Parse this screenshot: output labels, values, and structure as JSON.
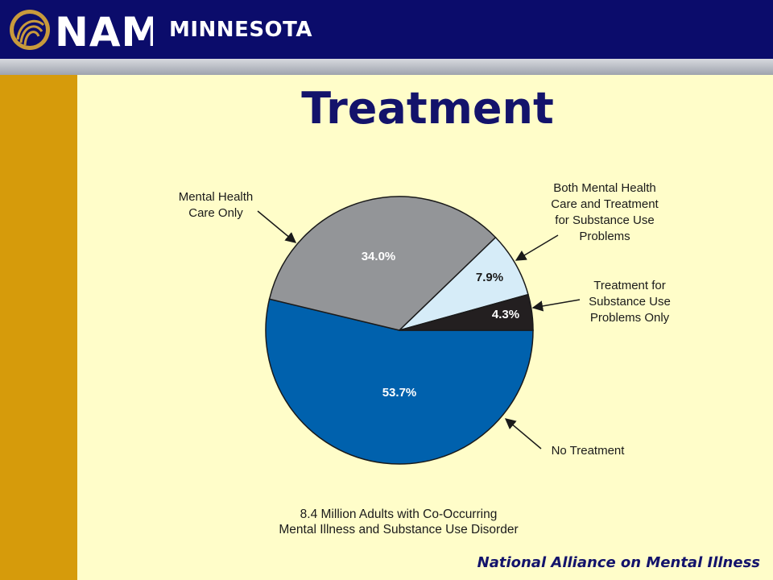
{
  "header": {
    "org_name": "NAMI",
    "region": "MINNESOTA"
  },
  "colors": {
    "header_bg": "#0b0c6b",
    "accent_gold": "#d69b0b",
    "slide_bg": "#fffdc9"
  },
  "footer": {
    "text": "National Alliance on Mental Illness"
  },
  "chart_data": {
    "type": "pie",
    "title": "Treatment",
    "slices": [
      {
        "label": [
          "No Treatment"
        ],
        "value": 53.7,
        "display": "53.7%",
        "color": "#0061ad",
        "text_color": "#ffffff"
      },
      {
        "label": [
          "Mental Health",
          "Care Only"
        ],
        "value": 34.0,
        "display": "34.0%",
        "color": "#939598",
        "text_color": "#ffffff"
      },
      {
        "label": [
          "Both Mental Health",
          "Care and Treatment",
          "for Substance Use",
          "Problems"
        ],
        "value": 7.9,
        "display": "7.9%",
        "color": "#d6ecf8",
        "text_color": "#1a1a1a"
      },
      {
        "label": [
          "Treatment for",
          "Substance Use",
          "Problems Only"
        ],
        "value": 4.3,
        "display": "4.3%",
        "color": "#231f20",
        "text_color": "#ffffff"
      }
    ],
    "caption": [
      "8.4 Million Adults with Co-Occurring",
      "Mental Illness and Substance Use Disorder"
    ]
  }
}
